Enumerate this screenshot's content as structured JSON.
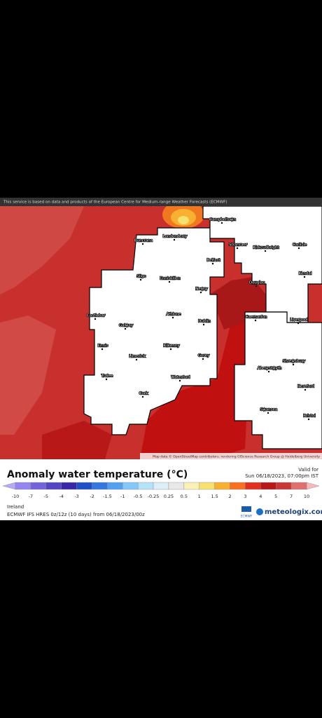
{
  "header": {
    "disclaimer": "This service is based on data and products of the European Centre for Medium-range Weather Forecasts (ECMWF)"
  },
  "map": {
    "places": [
      "Campbeltown",
      "Buncrana",
      "Londonderry",
      "Belfast",
      "Stranraer",
      "Kirkcudbright",
      "Carlisle",
      "Sligo",
      "Enniskillen",
      "Newry",
      "Douglas",
      "Kendal",
      "Castlebar",
      "Galway",
      "Athlone",
      "Dublin",
      "Liverpool",
      "Caernarfon",
      "Ennis",
      "Limerick",
      "Kilkenny",
      "Gorey",
      "Aberystwyth",
      "Shrewsbury",
      "Tralee",
      "Waterford",
      "Cork",
      "Hereford",
      "Swansea",
      "Bristol"
    ],
    "attribution": "Map data © OpenStreetMap contributors, rendering GIScience Research Group @ Heidelberg University"
  },
  "legend": {
    "title": "Anomaly water temperature (°C)",
    "valid_label": "Valid for",
    "valid_time": "Sun 06/18/2023, 07:00pm IST",
    "labels": [
      "-10",
      "-7",
      "-5",
      "-4",
      "-3",
      "-2",
      "-1.5",
      "-1",
      "-0.5",
      "-0.25",
      "0.25",
      "0.5",
      "1",
      "1.5",
      "2",
      "3",
      "4",
      "5",
      "7",
      "10"
    ],
    "under_color": "#b4aaf8",
    "over_color": "#f8b8b8",
    "colors": [
      "#9484f0",
      "#7464dc",
      "#5444c4",
      "#3828a8",
      "#2050c8",
      "#3478e0",
      "#54a0f0",
      "#84c8f8",
      "#b4e2f8",
      "#dceef6",
      "#e8e8e8",
      "#f8f0b4",
      "#f8e070",
      "#f8b030",
      "#f87020",
      "#e03020",
      "#b81818",
      "#c83838",
      "#e07070"
    ]
  },
  "footer": {
    "region": "Ireland",
    "model": "ECMWF IFS HRES 0z/12z (10 days) from 06/18/2023/00z",
    "agency": "ECMWF",
    "brand": "meteologix.com"
  }
}
